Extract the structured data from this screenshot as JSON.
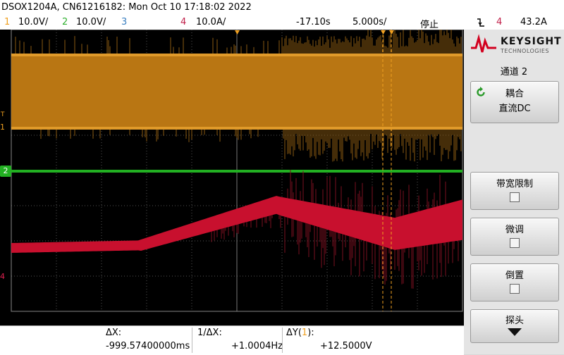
{
  "header": {
    "title": "DSOX1204A, CN61216182: Mon Oct 10 17:18:02 2022"
  },
  "channels": [
    {
      "num": "1",
      "scale": "10.0V/",
      "color": "#f0a020"
    },
    {
      "num": "2",
      "scale": "10.0V/",
      "color": "#30b030"
    },
    {
      "num": "3",
      "scale": "",
      "color": "#3a7fc0"
    },
    {
      "num": "4",
      "scale": "10.0A/",
      "color": "#c0204a"
    }
  ],
  "timebase": {
    "delay": "-17.10s",
    "scale": "5.000s/",
    "run_state": "停止",
    "trigger_icon": "falling-edge-trigger-icon",
    "trigger_source": "4",
    "trigger_level": "43.2A"
  },
  "markers": {
    "ch1": "1",
    "ch1_ref": "T",
    "ch2": "2",
    "ch4": "4"
  },
  "side_menu": {
    "brand": "KEYSIGHT",
    "brand_sub": "TECHNOLOGIES",
    "title": "通道 2",
    "coupling_label": "耦合",
    "coupling_value": "直流DC",
    "bw_limit_label": "带宽限制",
    "bw_limit_checked": false,
    "fine_label": "微调",
    "fine_checked": false,
    "invert_label": "倒置",
    "invert_checked": false,
    "probe_label": "探头"
  },
  "measurements": {
    "dx_label": "ΔX:",
    "dx_value": "-999.57400000ms",
    "inv_dx_label": "1/ΔX:",
    "inv_dx_value": "+1.0004Hz",
    "dy_label_prefix": "ΔY(",
    "dy_channel": "1",
    "dy_label_suffix": "):",
    "dy_value": "+12.5000V"
  }
}
